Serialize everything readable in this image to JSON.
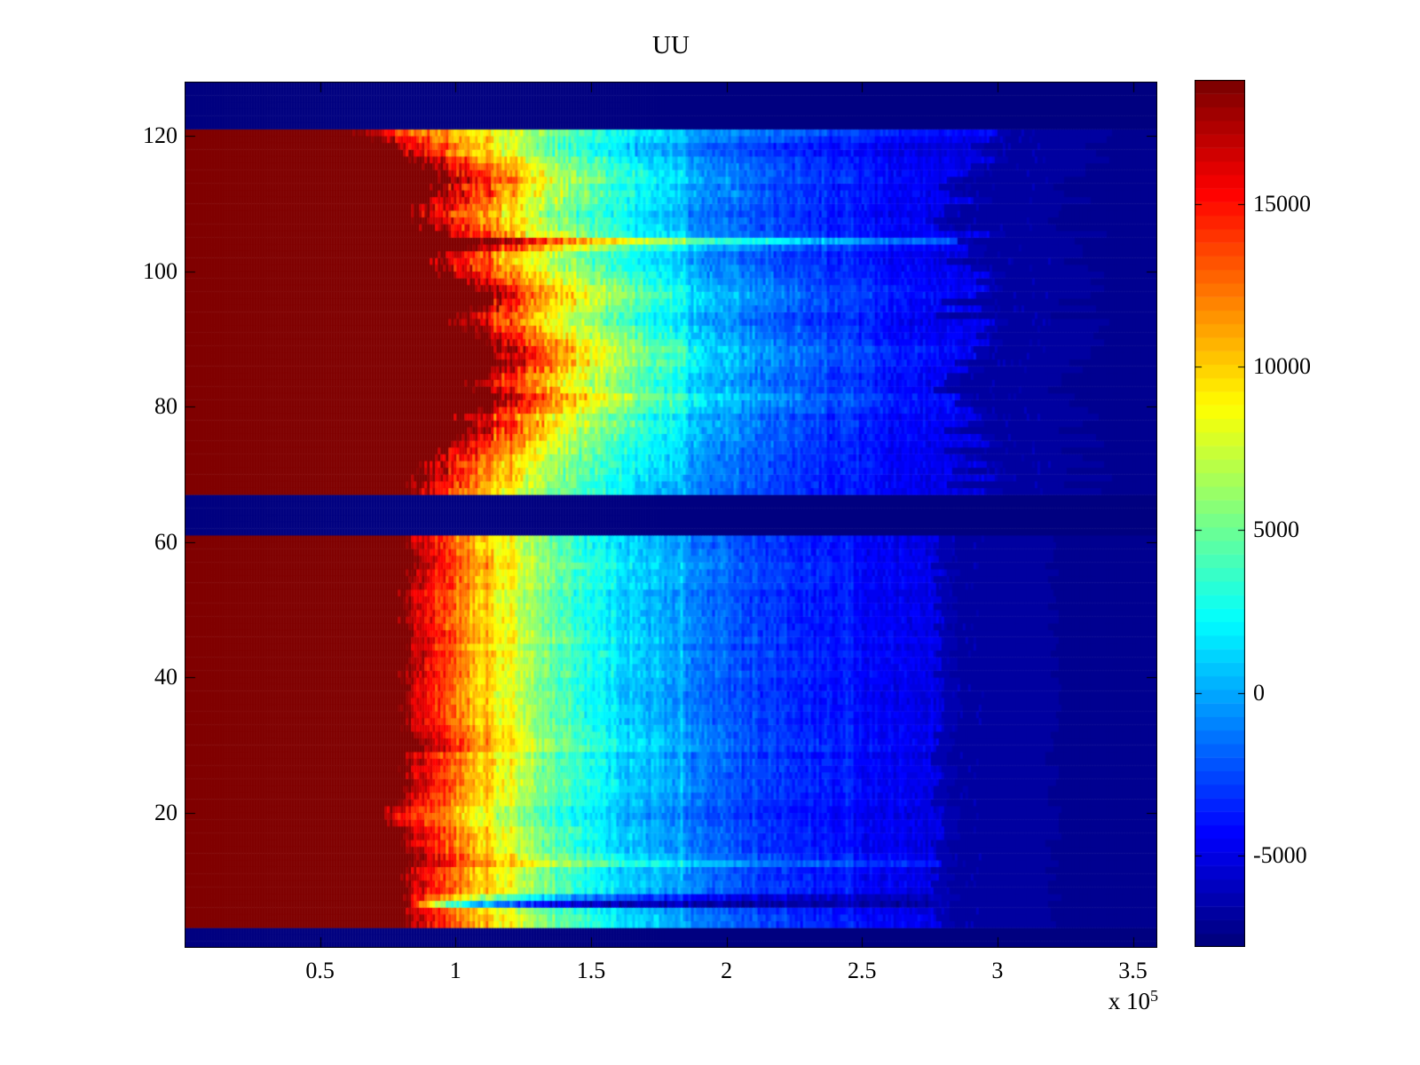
{
  "chart_data": {
    "type": "heatmap",
    "title": "UU",
    "colormap": "jet",
    "x_axis": {
      "tick_labels": [
        "0.5",
        "1",
        "1.5",
        "2",
        "2.5",
        "3",
        "3.5"
      ],
      "tick_values": [
        0.5,
        1,
        1.5,
        2,
        2.5,
        3,
        3.5
      ],
      "scale_base": "x 10",
      "scale_exp": "5",
      "range_1e5": [
        0,
        3.59
      ]
    },
    "y_axis": {
      "tick_labels": [
        "20",
        "40",
        "60",
        "80",
        "100",
        "120"
      ],
      "tick_values": [
        20,
        40,
        60,
        80,
        100,
        120
      ],
      "range": [
        0,
        128
      ]
    },
    "colorbar": {
      "tick_labels": [
        "15000",
        "10000",
        "5000",
        "0",
        "-5000"
      ],
      "tick_values": [
        15000,
        10000,
        5000,
        0,
        -5000
      ],
      "vmin": -7800,
      "vmax": 18800,
      "levels": 64
    },
    "value_model": {
      "saturation_value": 18800,
      "baseline_value": -6700,
      "background_value": -7800,
      "decay_tau_1e5": 0.7,
      "background_rows": [
        [
          0,
          2
        ],
        [
          61,
          66
        ],
        [
          121,
          127
        ]
      ],
      "row_bands": [
        {
          "name": "lower-block",
          "row_start": 3,
          "row_end": 60,
          "cutoff_1e5": 2.78,
          "cutoff_jitter_1e5": 0.06,
          "speckle_until_1e5": 2.95,
          "edge_jitter_1e5": 0.015,
          "edges_1e5": [
            0.8,
            0.8,
            0.81,
            0.81,
            0.8,
            0.82,
            0.8,
            0.81,
            0.8,
            0.82,
            0.84,
            0.81,
            0.8,
            0.81,
            0.8,
            0.74,
            0.73,
            0.74,
            0.76,
            0.79,
            0.8,
            0.81,
            0.8,
            0.79,
            0.81,
            0.8,
            0.85,
            0.86,
            0.84,
            0.8,
            0.81,
            0.8,
            0.79,
            0.81,
            0.8,
            0.81,
            0.8,
            0.8,
            0.81,
            0.8,
            0.81,
            0.8,
            0.82,
            0.83,
            0.82,
            0.8,
            0.8,
            0.81,
            0.8,
            0.8,
            0.81,
            0.8,
            0.83,
            0.84,
            0.85,
            0.84,
            0.83,
            0.81
          ],
          "tau_overrides": {
            "6": 0.22,
            "7": 0.45,
            "12": 0.85
          }
        },
        {
          "name": "upper-block",
          "row_start": 67,
          "row_end": 120,
          "cutoff_1e5": 2.88,
          "cutoff_jitter_1e5": 0.25,
          "speckle_until_1e5": 3.2,
          "edge_jitter_1e5": 0.05,
          "edges_1e5": [
            0.82,
            0.84,
            0.87,
            0.9,
            0.88,
            0.92,
            0.95,
            0.97,
            1.0,
            1.04,
            1.06,
            1.03,
            1.08,
            1.12,
            1.16,
            1.1,
            1.06,
            1.09,
            1.13,
            1.17,
            1.12,
            1.15,
            1.13,
            1.1,
            1.05,
            1.02,
            1.0,
            1.04,
            1.08,
            1.1,
            1.06,
            1.0,
            0.96,
            0.93,
            0.9,
            0.95,
            1.05,
            1.13,
            0.95,
            0.9,
            0.88,
            0.85,
            0.87,
            0.9,
            0.93,
            0.95,
            0.97,
            0.93,
            0.9,
            0.85,
            0.8,
            0.78,
            0.72,
            0.6
          ],
          "tau_overrides": {
            "104": 0.95,
            "119": 0.85,
            "120": 0.95
          }
        }
      ],
      "bright_columns_1e5": [
        {
          "x": 1.12,
          "amp": 1300,
          "sigma": 0.012
        },
        {
          "x": 1.21,
          "amp": 1700,
          "sigma": 0.01
        },
        {
          "x": 1.74,
          "amp": 700,
          "sigma": 0.01
        },
        {
          "x": 1.79,
          "amp": 1100,
          "sigma": 0.008
        },
        {
          "x": 1.83,
          "amp": 1900,
          "sigma": 0.01
        },
        {
          "x": 2.02,
          "amp": 600,
          "sigma": 0.01
        },
        {
          "x": 2.45,
          "amp": 1300,
          "sigma": 0.014
        }
      ],
      "noise": {
        "seed": 1234,
        "cell_amp": 2600,
        "stripe_amp": 1900,
        "row_amp": 1100
      }
    }
  }
}
